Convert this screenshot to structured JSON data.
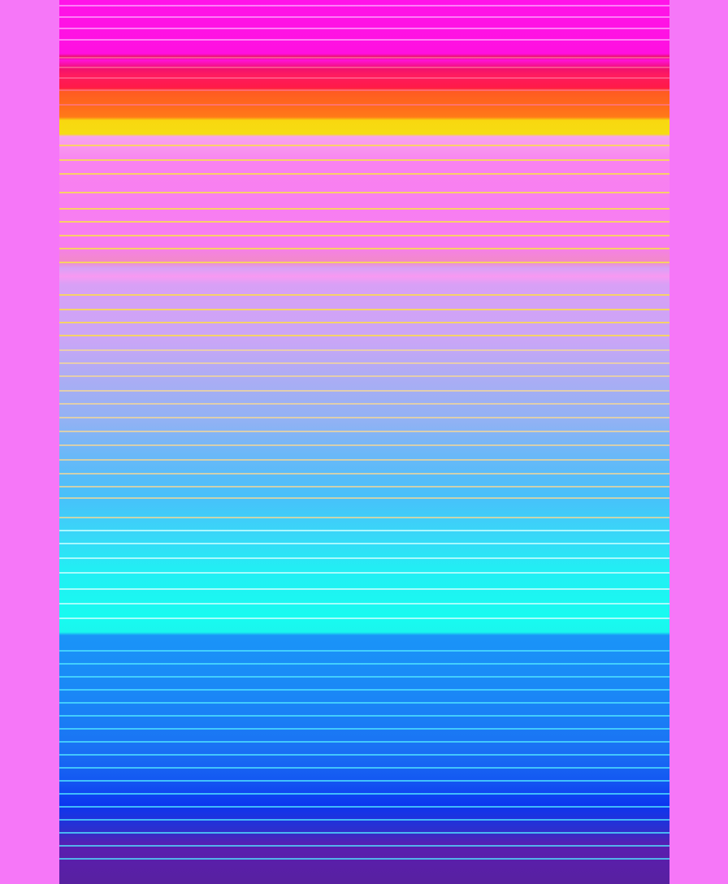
{
  "artwork": {
    "background_color": "#f677f8",
    "stripe_colors": [
      "#ff14e8",
      "#ff1a48",
      "#ff6a1c",
      "#f8d810",
      "#f982f0",
      "#d8a0f6",
      "#a9adf4",
      "#6ab8f8",
      "#38d8f8",
      "#18fbf0",
      "#1a86f6",
      "#0c36f0",
      "#5820a0"
    ]
  }
}
